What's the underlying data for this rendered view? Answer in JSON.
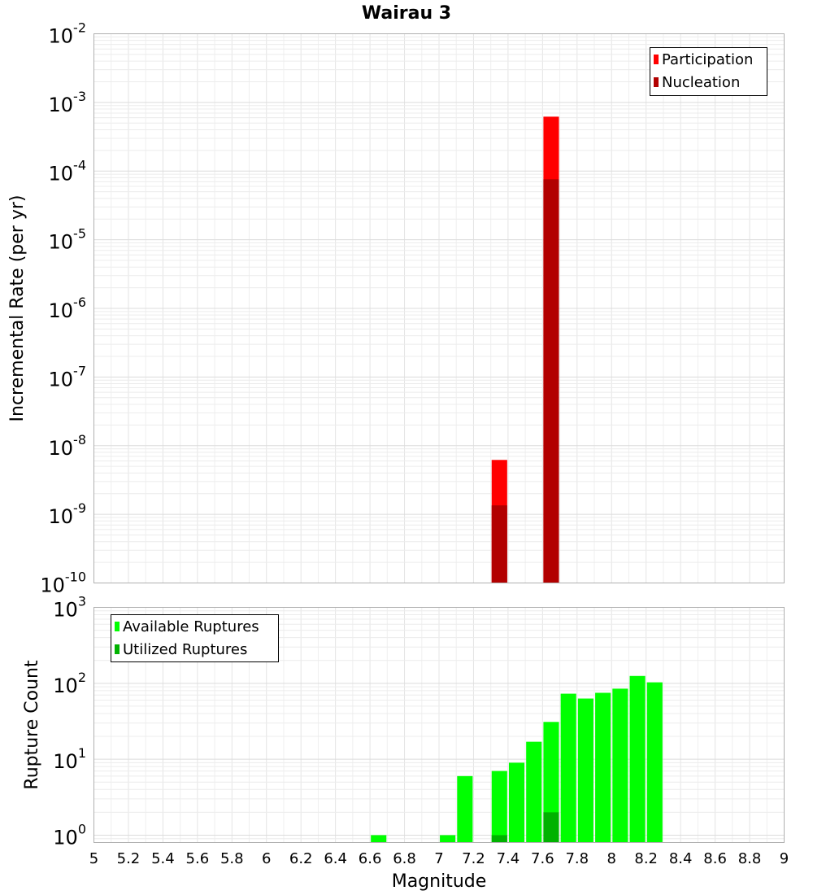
{
  "title": "Wairau 3",
  "xaxis": {
    "label": "Magnitude",
    "ticks": [
      "5",
      "5.2",
      "5.4",
      "5.6",
      "5.8",
      "6",
      "6.2",
      "6.4",
      "6.6",
      "6.8",
      "7",
      "7.2",
      "7.4",
      "7.6",
      "7.8",
      "8",
      "8.2",
      "8.4",
      "8.6",
      "8.8",
      "9"
    ],
    "range": [
      5,
      9
    ]
  },
  "chart_data": [
    {
      "type": "bar",
      "ylabel": "Incremental Rate (per yr)",
      "yscale": "log",
      "ylim": [
        1e-10,
        0.01
      ],
      "y_ticks": [
        {
          "base": "10",
          "exp": "-10",
          "value": 1e-10
        },
        {
          "base": "10",
          "exp": "-9",
          "value": 1e-09
        },
        {
          "base": "10",
          "exp": "-8",
          "value": 1e-08
        },
        {
          "base": "10",
          "exp": "-7",
          "value": 1e-07
        },
        {
          "base": "10",
          "exp": "-6",
          "value": 1e-06
        },
        {
          "base": "10",
          "exp": "-5",
          "value": 1e-05
        },
        {
          "base": "10",
          "exp": "-4",
          "value": 0.0001
        },
        {
          "base": "10",
          "exp": "-3",
          "value": 0.001
        },
        {
          "base": "10",
          "exp": "-2",
          "value": 0.01
        }
      ],
      "grid": true,
      "legend_position": "top-right",
      "bar_width": 0.09,
      "series": [
        {
          "name": "Participation",
          "color": "#ff0000",
          "points": [
            {
              "x": 7.35,
              "y": 6.2e-09
            },
            {
              "x": 7.65,
              "y": 0.00062
            }
          ]
        },
        {
          "name": "Nucleation",
          "color": "#b20000",
          "points": [
            {
              "x": 7.35,
              "y": 1.35e-09
            },
            {
              "x": 7.65,
              "y": 7.6e-05
            }
          ]
        }
      ]
    },
    {
      "type": "bar",
      "ylabel": "Rupture Count",
      "yscale": "log",
      "ylim": [
        0.8,
        1000
      ],
      "y_ticks": [
        {
          "base": "10",
          "exp": "0",
          "value": 1
        },
        {
          "base": "10",
          "exp": "1",
          "value": 10
        },
        {
          "base": "10",
          "exp": "2",
          "value": 100
        },
        {
          "base": "10",
          "exp": "3",
          "value": 1000
        }
      ],
      "grid": true,
      "legend_position": "top-left",
      "bar_width": 0.09,
      "series": [
        {
          "name": "Available Ruptures",
          "color": "#00ff00",
          "points": [
            {
              "x": 6.65,
              "y": 1
            },
            {
              "x": 7.05,
              "y": 1
            },
            {
              "x": 7.15,
              "y": 6
            },
            {
              "x": 7.35,
              "y": 7
            },
            {
              "x": 7.45,
              "y": 9
            },
            {
              "x": 7.55,
              "y": 17
            },
            {
              "x": 7.65,
              "y": 31
            },
            {
              "x": 7.75,
              "y": 73
            },
            {
              "x": 7.85,
              "y": 63
            },
            {
              "x": 7.95,
              "y": 75
            },
            {
              "x": 8.05,
              "y": 85
            },
            {
              "x": 8.15,
              "y": 125
            },
            {
              "x": 8.25,
              "y": 103
            }
          ]
        },
        {
          "name": "Utilized Ruptures",
          "color": "#00b200",
          "points": [
            {
              "x": 7.35,
              "y": 1
            },
            {
              "x": 7.65,
              "y": 2
            }
          ]
        }
      ]
    }
  ]
}
